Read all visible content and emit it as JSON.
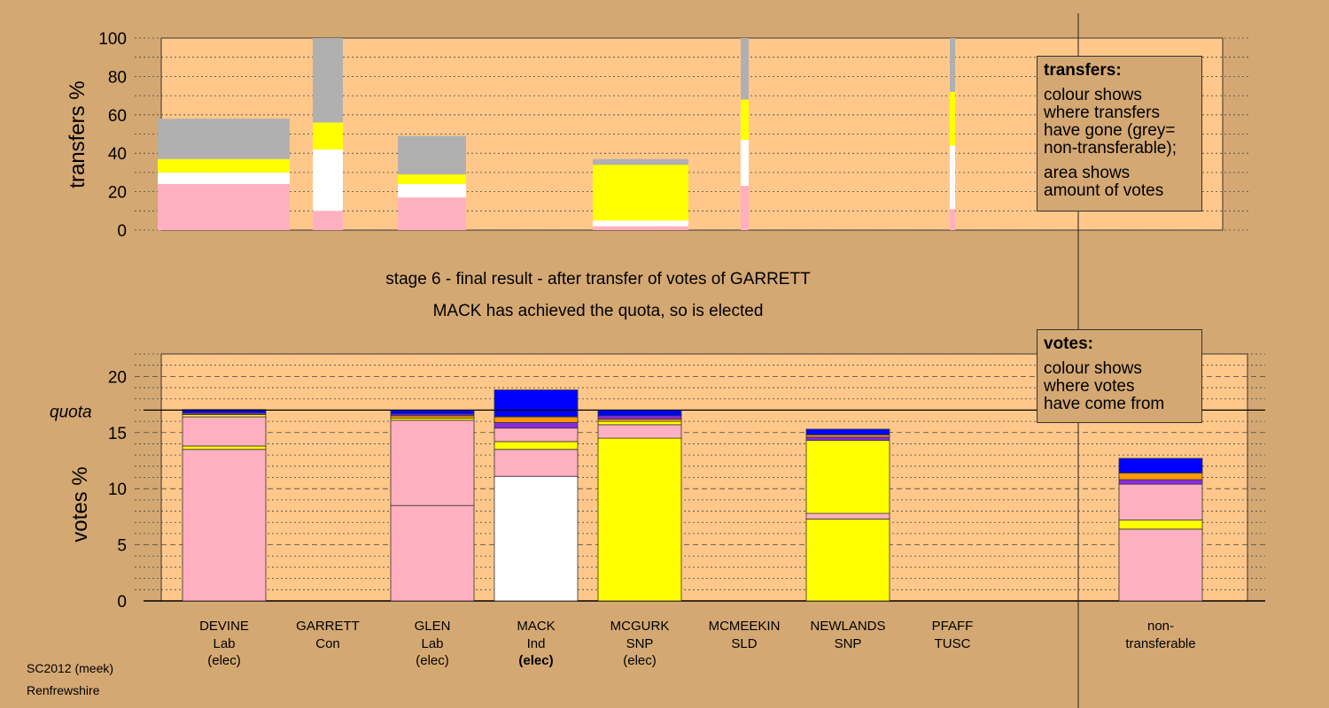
{
  "colors": {
    "background": "#d4a873",
    "plot_background": "#ffc88a",
    "Lab": "#ffb0c0",
    "Ind": "#ffffff",
    "SNP": "#ffff00",
    "Con": "#0000ff",
    "SLD": "#ff9900",
    "TUSC": "#8a2be2",
    "non-transferable": "#b0b0b0"
  },
  "stage_text": "stage 6 - final result - after transfer of votes of GARRETT",
  "result_text": "MACK has achieved the quota, so is elected",
  "transfers_legend": {
    "heading": "transfers:",
    "para1": "colour shows\nwhere transfers\nhave gone (grey=\nnon-transferable);",
    "para2": "area shows\namount of votes"
  },
  "votes_legend": {
    "heading": "votes:",
    "para1": "colour shows\nwhere votes\nhave come from"
  },
  "footer": {
    "line1": "SC2012 (meek)",
    "line2": "Renfrewshire"
  },
  "chart_data": [
    {
      "type": "bar",
      "stacked": true,
      "ylabel": "transfers %",
      "ylim": [
        0,
        100
      ],
      "yticks": [
        0,
        20,
        40,
        60,
        80,
        100
      ],
      "grid": true,
      "bars": [
        {
          "candidate": "DEVINE",
          "width_share": 0.26,
          "segments": [
            {
              "party": "Lab",
              "value": 24
            },
            {
              "party": "Ind",
              "value": 6
            },
            {
              "party": "SNP",
              "value": 7
            },
            {
              "party": "non-transferable",
              "value": 21
            }
          ]
        },
        {
          "candidate": "GARRETT",
          "width_share": 0.06,
          "segments": [
            {
              "party": "Lab",
              "value": 10
            },
            {
              "party": "Ind",
              "value": 32
            },
            {
              "party": "SNP",
              "value": 14
            },
            {
              "party": "non-transferable",
              "value": 44
            }
          ]
        },
        {
          "candidate": "GLEN",
          "width_share": 0.14,
          "segments": [
            {
              "party": "Lab",
              "value": 17
            },
            {
              "party": "Ind",
              "value": 7
            },
            {
              "party": "SNP",
              "value": 5
            },
            {
              "party": "non-transferable",
              "value": 20
            }
          ]
        },
        {
          "candidate": "MCGURK",
          "width_share": 0.19,
          "segments": [
            {
              "party": "Lab",
              "value": 2
            },
            {
              "party": "Ind",
              "value": 3
            },
            {
              "party": "SNP",
              "value": 29
            },
            {
              "party": "non-transferable",
              "value": 3
            }
          ]
        },
        {
          "candidate": "MCMEEKIN",
          "width_share": 0.015,
          "segments": [
            {
              "party": "Lab",
              "value": 23
            },
            {
              "party": "Ind",
              "value": 24
            },
            {
              "party": "SNP",
              "value": 21
            },
            {
              "party": "non-transferable",
              "value": 32
            }
          ]
        },
        {
          "candidate": "PFAFF",
          "width_share": 0.01,
          "segments": [
            {
              "party": "Lab",
              "value": 11
            },
            {
              "party": "Ind",
              "value": 33
            },
            {
              "party": "SNP",
              "value": 28
            },
            {
              "party": "non-transferable",
              "value": 28
            }
          ]
        }
      ]
    },
    {
      "type": "bar",
      "stacked": true,
      "ylabel": "votes %",
      "ylim": [
        0,
        22
      ],
      "yticks": [
        0,
        5,
        10,
        15,
        20
      ],
      "grid": true,
      "quota": 17.0,
      "quota_label": "quota",
      "categories": [
        {
          "name": "DEVINE",
          "sub1": "Lab",
          "sub2": "(elec)",
          "bold_sub2": false
        },
        {
          "name": "GARRETT",
          "sub1": "Con",
          "sub2": "",
          "bold_sub2": false
        },
        {
          "name": "GLEN",
          "sub1": "Lab",
          "sub2": "(elec)",
          "bold_sub2": false
        },
        {
          "name": "MACK",
          "sub1": "Ind",
          "sub2": "(elec)",
          "bold_sub2": true
        },
        {
          "name": "MCGURK",
          "sub1": "SNP",
          "sub2": "(elec)",
          "bold_sub2": false
        },
        {
          "name": "MCMEEKIN",
          "sub1": "SLD",
          "sub2": "",
          "bold_sub2": false
        },
        {
          "name": "NEWLANDS",
          "sub1": "SNP",
          "sub2": "",
          "bold_sub2": false
        },
        {
          "name": "PFAFF",
          "sub1": "TUSC",
          "sub2": "",
          "bold_sub2": false
        },
        {
          "name": "non-",
          "sub1": "transferable",
          "sub2": "",
          "bold_sub2": false
        }
      ],
      "stacks": [
        [
          {
            "party": "Lab",
            "value": 13.5
          },
          {
            "party": "SNP",
            "value": 0.3
          },
          {
            "party": "Lab",
            "value": 2.6
          },
          {
            "party": "SNP",
            "value": 0.2
          },
          {
            "party": "TUSC",
            "value": 0.15
          },
          {
            "party": "Con",
            "value": 0.3
          }
        ],
        [],
        [
          {
            "party": "Lab",
            "value": 8.5
          },
          {
            "party": "Lab",
            "value": 7.6
          },
          {
            "party": "SNP",
            "value": 0.2
          },
          {
            "party": "SLD",
            "value": 0.2
          },
          {
            "party": "TUSC",
            "value": 0.15
          },
          {
            "party": "Con",
            "value": 0.35
          }
        ],
        [
          {
            "party": "Ind",
            "value": 11.1
          },
          {
            "party": "Lab",
            "value": 2.4
          },
          {
            "party": "SNP",
            "value": 0.7
          },
          {
            "party": "Lab",
            "value": 1.2
          },
          {
            "party": "TUSC",
            "value": 0.5
          },
          {
            "party": "SLD",
            "value": 0.5
          },
          {
            "party": "Con",
            "value": 2.4
          }
        ],
        [
          {
            "party": "SNP",
            "value": 14.5
          },
          {
            "party": "Lab",
            "value": 1.2
          },
          {
            "party": "SNP",
            "value": 0.3
          },
          {
            "party": "SLD",
            "value": 0.2
          },
          {
            "party": "TUSC",
            "value": 0.3
          },
          {
            "party": "Con",
            "value": 0.5
          }
        ],
        [],
        [
          {
            "party": "SNP",
            "value": 7.3
          },
          {
            "party": "Lab",
            "value": 0.5
          },
          {
            "party": "SNP",
            "value": 6.5
          },
          {
            "party": "TUSC",
            "value": 0.3
          },
          {
            "party": "SLD",
            "value": 0.2
          },
          {
            "party": "Con",
            "value": 0.5
          }
        ],
        [],
        [
          {
            "party": "Lab",
            "value": 6.4
          },
          {
            "party": "SNP",
            "value": 0.8
          },
          {
            "party": "Lab",
            "value": 3.2
          },
          {
            "party": "TUSC",
            "value": 0.4
          },
          {
            "party": "SLD",
            "value": 0.6
          },
          {
            "party": "Con",
            "value": 1.3
          }
        ]
      ]
    }
  ]
}
